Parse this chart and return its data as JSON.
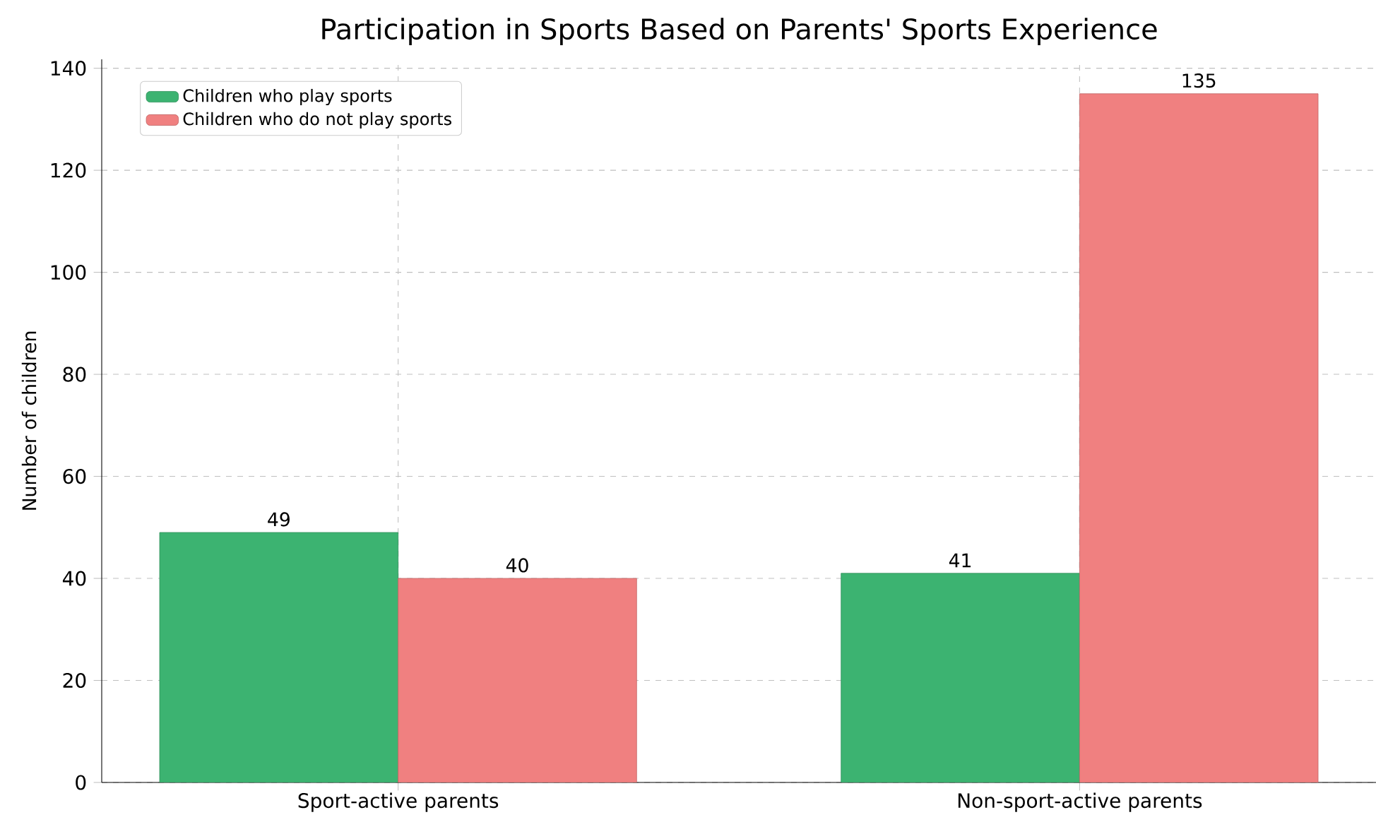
{
  "chart_data": {
    "type": "bar",
    "title": "Participation in Sports Based on Parents' Sports Experience",
    "ylabel": "Number of children",
    "categories": [
      "Sport-active parents",
      "Non-sport-active parents"
    ],
    "series": [
      {
        "name": "Children who play sports",
        "color": "#3cb371",
        "values": [
          49,
          41
        ]
      },
      {
        "name": "Children who do not play sports",
        "color": "#f08080",
        "values": [
          40,
          135
        ]
      }
    ],
    "ylim": [
      0,
      141.75
    ],
    "yticks": [
      0,
      20,
      40,
      60,
      80,
      100,
      120,
      140
    ],
    "grid": true,
    "legend": "top left",
    "data_labels": true
  }
}
